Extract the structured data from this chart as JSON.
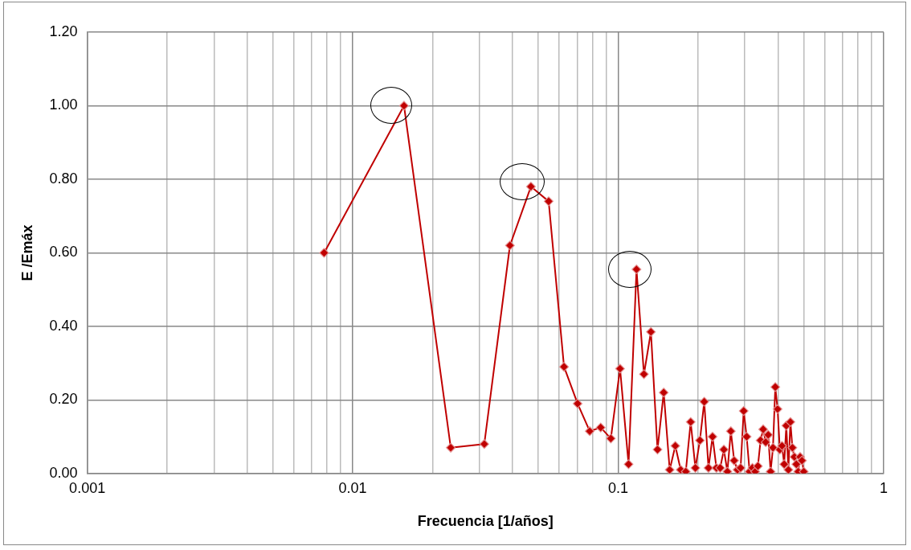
{
  "chart_data": {
    "type": "line",
    "xlabel": "Frecuencia [1/años]",
    "ylabel": "E /Emáx",
    "x": [
      0.0078,
      0.0156,
      0.0234,
      0.0313,
      0.0391,
      0.0469,
      0.0547,
      0.0625,
      0.0703,
      0.0781,
      0.0859,
      0.0938,
      0.1016,
      0.1094,
      0.1172,
      0.125,
      0.1328,
      0.1406,
      0.1484,
      0.1563,
      0.1641,
      0.1719,
      0.1797,
      0.1875,
      0.1953,
      0.2031,
      0.2109,
      0.2188,
      0.2266,
      0.2344,
      0.2422,
      0.25,
      0.2578,
      0.2656,
      0.2734,
      0.2813,
      0.2891,
      0.2969,
      0.3047,
      0.3125,
      0.3203,
      0.3281,
      0.3359,
      0.3438,
      0.3516,
      0.3594,
      0.3672,
      0.375,
      0.3828,
      0.3906,
      0.3984,
      0.4063,
      0.4141,
      0.4219,
      0.4297,
      0.4375,
      0.4453,
      0.4531,
      0.4609,
      0.4688,
      0.4766,
      0.4844,
      0.4922,
      0.5
    ],
    "series": [
      {
        "color": "#c00000",
        "values": [
          0.6,
          1.0,
          0.07,
          0.08,
          0.62,
          0.78,
          0.74,
          0.29,
          0.19,
          0.115,
          0.125,
          0.095,
          0.285,
          0.025,
          0.555,
          0.27,
          0.385,
          0.065,
          0.22,
          0.01,
          0.075,
          0.01,
          0.005,
          0.14,
          0.015,
          0.09,
          0.195,
          0.015,
          0.1,
          0.015,
          0.015,
          0.065,
          0.005,
          0.115,
          0.035,
          0.01,
          0.015,
          0.17,
          0.1,
          0.005,
          0.015,
          0.005,
          0.02,
          0.09,
          0.12,
          0.085,
          0.105,
          0.005,
          0.07,
          0.235,
          0.175,
          0.065,
          0.075,
          0.025,
          0.13,
          0.01,
          0.14,
          0.07,
          0.045,
          0.025,
          0.005,
          0.045,
          0.035,
          0.005
        ]
      }
    ],
    "log": "x",
    "xlim": [
      0.001,
      1
    ],
    "xticks": [
      {
        "value": 0.001,
        "label": "0.001"
      },
      {
        "value": 0.002,
        "label": null
      },
      {
        "value": 0.003,
        "label": null
      },
      {
        "value": 0.004,
        "label": null
      },
      {
        "value": 0.005,
        "label": null
      },
      {
        "value": 0.006,
        "label": null
      },
      {
        "value": 0.007,
        "label": null
      },
      {
        "value": 0.008,
        "label": null
      },
      {
        "value": 0.009,
        "label": null
      },
      {
        "value": 0.01,
        "label": "0.01"
      },
      {
        "value": 0.02,
        "label": null
      },
      {
        "value": 0.03,
        "label": null
      },
      {
        "value": 0.04,
        "label": null
      },
      {
        "value": 0.05,
        "label": null
      },
      {
        "value": 0.06,
        "label": null
      },
      {
        "value": 0.07,
        "label": null
      },
      {
        "value": 0.08,
        "label": null
      },
      {
        "value": 0.09,
        "label": null
      },
      {
        "value": 0.1,
        "label": "0.1"
      },
      {
        "value": 0.2,
        "label": null
      },
      {
        "value": 0.3,
        "label": null
      },
      {
        "value": 0.4,
        "label": null
      },
      {
        "value": 0.5,
        "label": null
      },
      {
        "value": 0.6,
        "label": null
      },
      {
        "value": 0.7,
        "label": null
      },
      {
        "value": 0.8,
        "label": null
      },
      {
        "value": 0.9,
        "label": null
      },
      {
        "value": 1,
        "label": "1"
      }
    ],
    "ylim": [
      0,
      1.2
    ],
    "yticks": [
      {
        "value": 0,
        "label": "0.00"
      },
      {
        "value": 0.2,
        "label": "0.20"
      },
      {
        "value": 0.4,
        "label": "0.40"
      },
      {
        "value": 0.6,
        "label": "0.60"
      },
      {
        "value": 0.8,
        "label": "0.80"
      },
      {
        "value": 1,
        "label": "1.00"
      },
      {
        "value": 1.2,
        "label": "1.20"
      }
    ],
    "grid": true,
    "legend": false,
    "marker": "diamond",
    "line_style": "solid"
  }
}
